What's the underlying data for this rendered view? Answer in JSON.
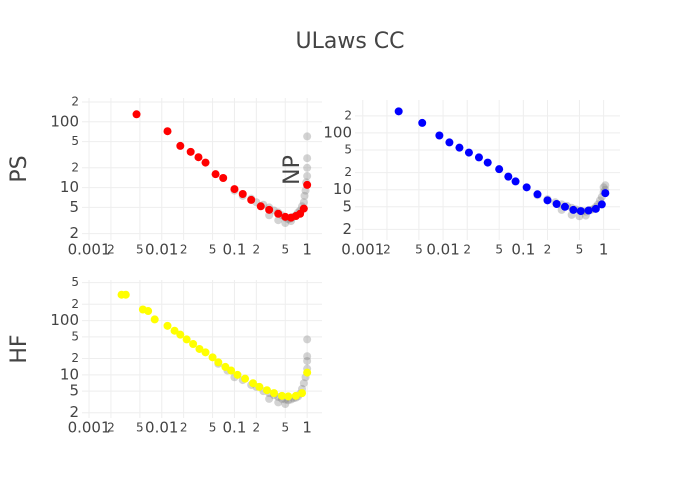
{
  "title": "ULaws  CC",
  "chart_data": [
    {
      "type": "scatter",
      "log_x": true,
      "log_y": true,
      "grid": true,
      "ylabel": "PS",
      "xlim": [
        0.0008,
        1.6
      ],
      "ylim": [
        1.6,
        230
      ],
      "xticks": [
        0.001,
        {
          "value": 0.002,
          "label": "2"
        },
        {
          "value": 0.005,
          "label": "5"
        },
        0.01,
        {
          "value": 0.02,
          "label": "2"
        },
        {
          "value": 0.05,
          "label": "5"
        },
        0.1,
        {
          "value": 0.2,
          "label": "2"
        },
        {
          "value": 0.5,
          "label": "5"
        },
        1
      ],
      "yticks": [
        2,
        5,
        10,
        {
          "value": 20,
          "label": "2"
        },
        {
          "value": 50,
          "label": "5"
        },
        100,
        {
          "value": 200,
          "label": "2"
        }
      ],
      "series": [
        {
          "color": "rgba(128,128,128,0.35)",
          "x": [
            0.1,
            0.13,
            0.17,
            0.2,
            0.25,
            0.3,
            0.35,
            0.4,
            0.45,
            0.5,
            0.55,
            0.6,
            0.65,
            0.7,
            0.75,
            0.8,
            0.85,
            0.9,
            0.92,
            0.95,
            0.97,
            1.0,
            1.0,
            1.0,
            1.0,
            0.3,
            0.4,
            0.5,
            0.6
          ],
          "values": [
            9,
            7.5,
            6.8,
            6,
            5.5,
            5,
            4.5,
            4.2,
            3.8,
            3.5,
            3.3,
            3.4,
            3.6,
            3.8,
            4.2,
            4.5,
            5.2,
            6,
            7.5,
            9,
            12,
            15,
            20,
            28,
            60,
            3.8,
            3.2,
            2.9,
            3.1
          ]
        },
        {
          "color": "#ff0000",
          "x": [
            0.0045,
            0.012,
            0.018,
            0.025,
            0.032,
            0.04,
            0.055,
            0.07,
            0.1,
            0.13,
            0.17,
            0.23,
            0.3,
            0.4,
            0.5,
            0.6,
            0.7,
            0.8,
            0.9,
            1.0
          ],
          "values": [
            130,
            72,
            43,
            35,
            29,
            24,
            16,
            14,
            9.5,
            8,
            6.5,
            5.2,
            4.6,
            4,
            3.6,
            3.5,
            3.7,
            4,
            4.8,
            11
          ]
        }
      ]
    },
    {
      "type": "scatter",
      "log_x": true,
      "log_y": true,
      "grid": true,
      "ylabel": "NP",
      "xlim": [
        0.0008,
        1.6
      ],
      "ylim": [
        1.3,
        380
      ],
      "xticks": [
        0.001,
        {
          "value": 0.002,
          "label": "2"
        },
        {
          "value": 0.005,
          "label": "5"
        },
        0.01,
        {
          "value": 0.02,
          "label": "2"
        },
        {
          "value": 0.05,
          "label": "5"
        },
        0.1,
        {
          "value": 0.2,
          "label": "2"
        },
        {
          "value": 0.5,
          "label": "5"
        },
        1
      ],
      "yticks": [
        2,
        5,
        10,
        {
          "value": 20,
          "label": "2"
        },
        {
          "value": 50,
          "label": "5"
        },
        100,
        {
          "value": 200,
          "label": "2"
        }
      ],
      "series": [
        {
          "color": "rgba(128,128,128,0.35)",
          "x": [
            0.15,
            0.2,
            0.25,
            0.3,
            0.35,
            0.4,
            0.45,
            0.5,
            0.55,
            0.6,
            0.65,
            0.7,
            0.75,
            0.8,
            0.85,
            0.9,
            0.95,
            1.0,
            1.0,
            1.05,
            1.05,
            0.3,
            0.4,
            0.5,
            0.6
          ],
          "values": [
            8,
            6.8,
            6,
            5.5,
            5.2,
            4.8,
            4.5,
            4.3,
            4.2,
            4.1,
            4.3,
            4.4,
            4.6,
            5,
            5.5,
            6.5,
            7.5,
            9,
            11,
            10,
            12,
            4.4,
            3.6,
            3.4,
            3.5
          ]
        },
        {
          "color": "#0000ff",
          "x": [
            0.0028,
            0.0055,
            0.009,
            0.012,
            0.016,
            0.021,
            0.028,
            0.036,
            0.05,
            0.065,
            0.08,
            0.11,
            0.15,
            0.2,
            0.26,
            0.33,
            0.42,
            0.52,
            0.65,
            0.8,
            0.95,
            1.05
          ],
          "values": [
            240,
            150,
            90,
            68,
            55,
            45,
            37,
            30,
            23,
            17,
            14,
            11,
            8.3,
            6.5,
            5.6,
            5,
            4.4,
            4.2,
            4.3,
            4.6,
            5.5,
            8.7
          ]
        }
      ]
    },
    {
      "type": "scatter",
      "log_x": true,
      "log_y": true,
      "grid": true,
      "ylabel": "HF",
      "xlim": [
        0.0008,
        1.6
      ],
      "ylim": [
        1.6,
        560
      ],
      "xticks": [
        0.001,
        {
          "value": 0.002,
          "label": "2"
        },
        {
          "value": 0.005,
          "label": "5"
        },
        0.01,
        {
          "value": 0.02,
          "label": "2"
        },
        {
          "value": 0.05,
          "label": "5"
        },
        0.1,
        {
          "value": 0.2,
          "label": "2"
        },
        {
          "value": 0.5,
          "label": "5"
        },
        1
      ],
      "yticks": [
        2,
        5,
        10,
        {
          "value": 20,
          "label": "2"
        },
        {
          "value": 50,
          "label": "5"
        },
        100,
        {
          "value": 200,
          "label": "2"
        },
        {
          "value": 500,
          "label": "5"
        }
      ],
      "series": [
        {
          "color": "rgba(128,128,128,0.35)",
          "x": [
            0.06,
            0.08,
            0.1,
            0.13,
            0.17,
            0.2,
            0.25,
            0.3,
            0.35,
            0.4,
            0.45,
            0.5,
            0.55,
            0.6,
            0.65,
            0.7,
            0.75,
            0.8,
            0.85,
            0.9,
            0.95,
            1.0,
            1.0,
            1.0,
            1.0,
            0.3,
            0.4,
            0.5
          ],
          "values": [
            16,
            12,
            9,
            8,
            6.5,
            6,
            5,
            4.6,
            4.2,
            3.9,
            3.6,
            3.5,
            3.4,
            3.5,
            3.7,
            3.8,
            4,
            4.5,
            5.5,
            7,
            9,
            13,
            18,
            22,
            45,
            3.6,
            3.1,
            2.9
          ]
        },
        {
          "color": "#ffff00",
          "x": [
            0.0028,
            0.0032,
            0.0055,
            0.0065,
            0.008,
            0.012,
            0.015,
            0.018,
            0.022,
            0.027,
            0.033,
            0.04,
            0.05,
            0.06,
            0.075,
            0.09,
            0.11,
            0.14,
            0.18,
            0.22,
            0.28,
            0.35,
            0.45,
            0.55,
            0.7,
            0.85,
            1.0
          ],
          "values": [
            300,
            300,
            160,
            150,
            105,
            80,
            65,
            55,
            45,
            37,
            30,
            26,
            21,
            17,
            14,
            12,
            10,
            8.5,
            7,
            6,
            5.2,
            4.6,
            4.1,
            4,
            4.1,
            4.6,
            11
          ]
        }
      ]
    }
  ]
}
